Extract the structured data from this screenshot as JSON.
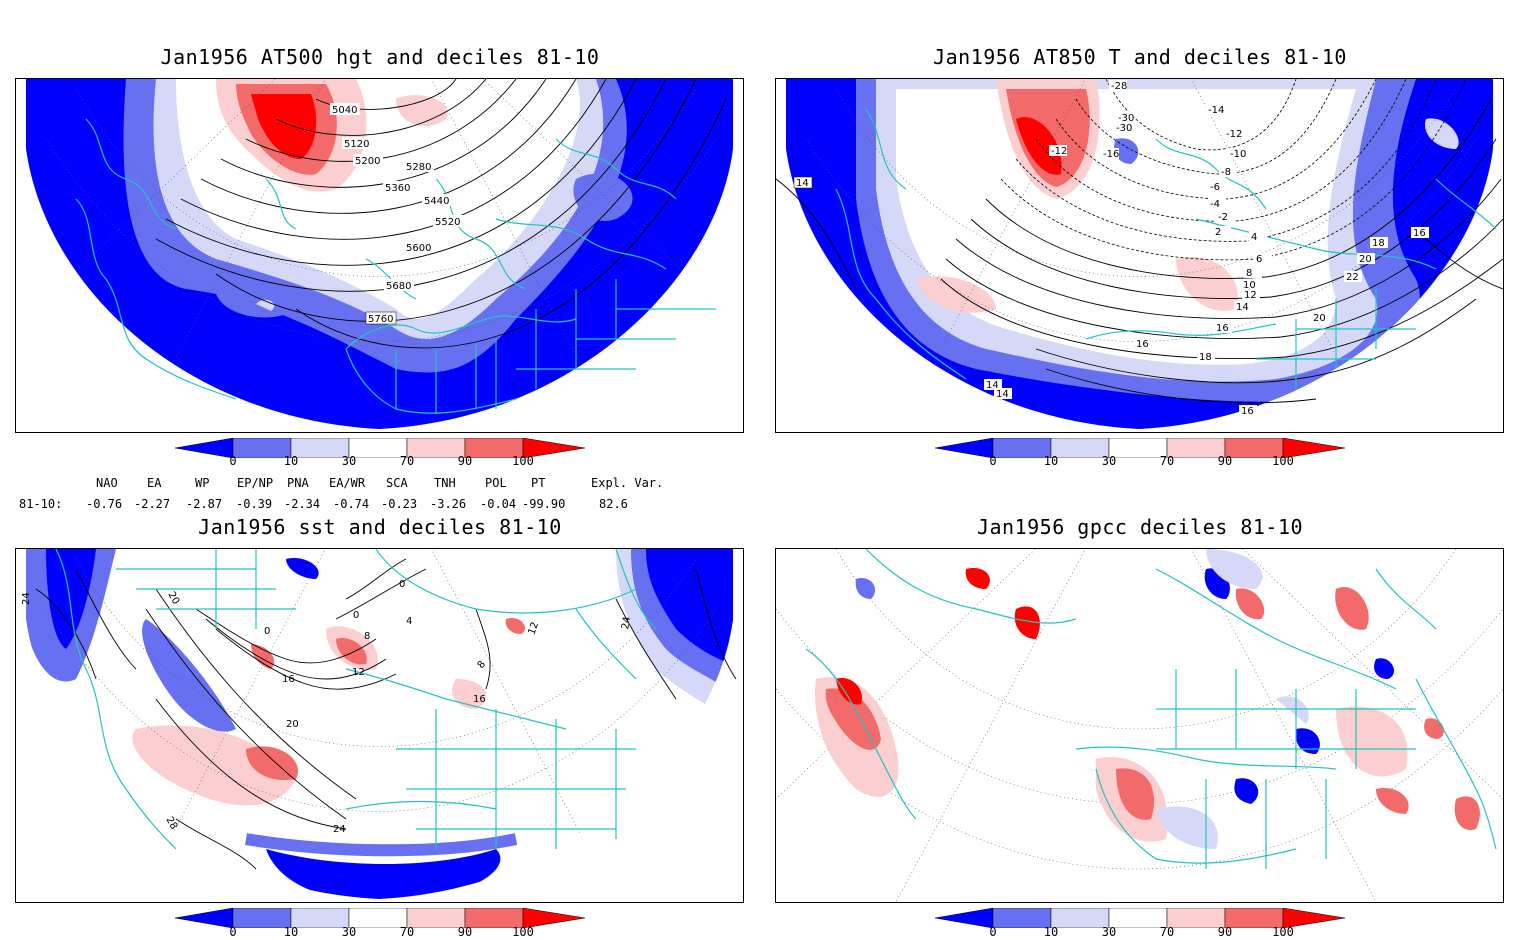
{
  "panels": [
    {
      "title": "Jan1956 AT500 hgt and deciles 81-10",
      "contour_labels": [
        "5040",
        "5120",
        "5200",
        "5280",
        "5360",
        "5440",
        "5520",
        "5600",
        "5680",
        "5760"
      ]
    },
    {
      "title": "Jan1956 AT850 T and deciles 81-10",
      "contour_labels": [
        "-28",
        "-30",
        "-30",
        "-14",
        "-12",
        "-10",
        "-16",
        "-12",
        "-8",
        "-6",
        "-4",
        "-2",
        "2",
        "4",
        "6",
        "8",
        "10",
        "12",
        "14",
        "16",
        "16",
        "18",
        "20",
        "22",
        "20",
        "18",
        "16",
        "14",
        "14",
        "14",
        "16"
      ]
    },
    {
      "title": "Jan1956 sst and deciles 81-10",
      "contour_labels": [
        "20",
        "24",
        "0",
        "4",
        "8",
        "0",
        "0",
        "12",
        "16",
        "16",
        "20",
        "24",
        "28",
        "24",
        "12",
        "8"
      ]
    },
    {
      "title": "Jan1956 gpcc deciles 81-10",
      "contour_labels": []
    }
  ],
  "colorbar": {
    "ticks": [
      "0",
      "10",
      "30",
      "70",
      "90",
      "100"
    ],
    "colors": [
      "#0000ff",
      "#6670f0",
      "#d6d8f8",
      "#ffffff",
      "#fbcfcf",
      "#f26a6a",
      "#ff0000"
    ]
  },
  "indices": {
    "headers": [
      "NAO",
      "EA",
      "WP",
      "EP/NP",
      "PNA",
      "EA/WR",
      "SCA",
      "TNH",
      "POL",
      "PT",
      "Expl. Var."
    ],
    "row_label": "81-10:",
    "values": [
      "-0.76",
      "-2.27",
      "-2.87",
      "-0.39",
      "-2.34",
      "-0.74",
      "-0.23",
      "-3.26",
      "-0.04",
      "-99.90",
      "82.6"
    ]
  }
}
